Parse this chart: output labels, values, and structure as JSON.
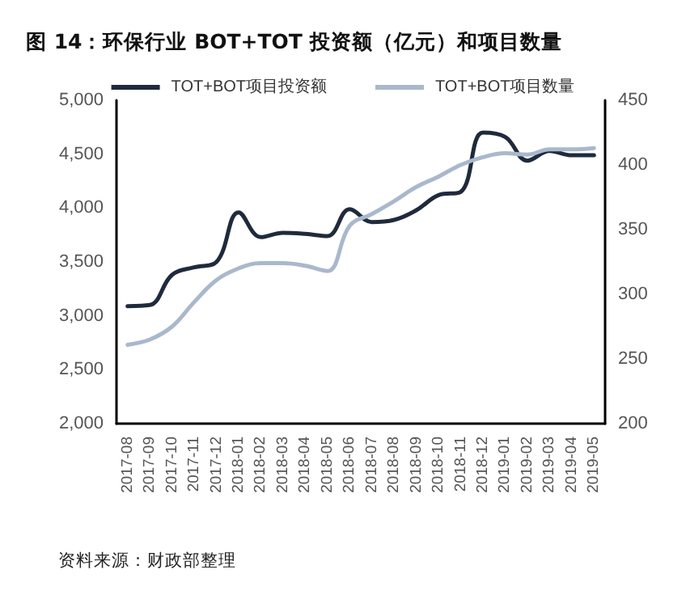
{
  "chart_data": {
    "type": "line",
    "title": "图 14：环保行业 BOT+TOT 投资额（亿元）和项目数量",
    "annotations": [
      "资料来源：财政部整理"
    ],
    "categories": [
      "2017-08",
      "2017-09",
      "2017-10",
      "2017-11",
      "2017-12",
      "2018-01",
      "2018-02",
      "2018-03",
      "2018-04",
      "2018-05",
      "2018-06",
      "2018-07",
      "2018-08",
      "2018-09",
      "2018-10",
      "2018-11",
      "2018-12",
      "2019-01",
      "2019-02",
      "2019-03",
      "2019-04",
      "2019-05"
    ],
    "series": [
      {
        "name": "TOT+BOT项目投资额",
        "color": "#1f2a3c",
        "values": [
          3090,
          3100,
          3380,
          3450,
          3500,
          3960,
          3730,
          3770,
          3760,
          3740,
          3990,
          3870,
          3890,
          3980,
          4120,
          4150,
          4700,
          4660,
          4440,
          4530,
          4490,
          4490
        ]
      },
      {
        "name": "TOT+BOT项目数量",
        "color": "#a9b8cc",
        "axis": "y2",
        "values": [
          261,
          265,
          275,
          294,
          311,
          320,
          324,
          324,
          322,
          318,
          353,
          362,
          372,
          383,
          391,
          400,
          406,
          409,
          408,
          412,
          412,
          413
        ]
      }
    ],
    "ylim": [
      2000,
      5000
    ],
    "yticks": [
      {
        "value": 2000,
        "label": "2,000"
      },
      {
        "value": 2500,
        "label": "2,500"
      },
      {
        "value": 3000,
        "label": "3,000"
      },
      {
        "value": 3500,
        "label": "3,500"
      },
      {
        "value": 4000,
        "label": "4,000"
      },
      {
        "value": 4500,
        "label": "4,500"
      },
      {
        "value": 5000,
        "label": "5,000"
      }
    ],
    "y2lim": [
      200,
      450
    ],
    "y2ticks": [
      200,
      250,
      300,
      350,
      400,
      450
    ],
    "legend": "top",
    "grid": false,
    "marker": "none",
    "line_style": "solid"
  }
}
